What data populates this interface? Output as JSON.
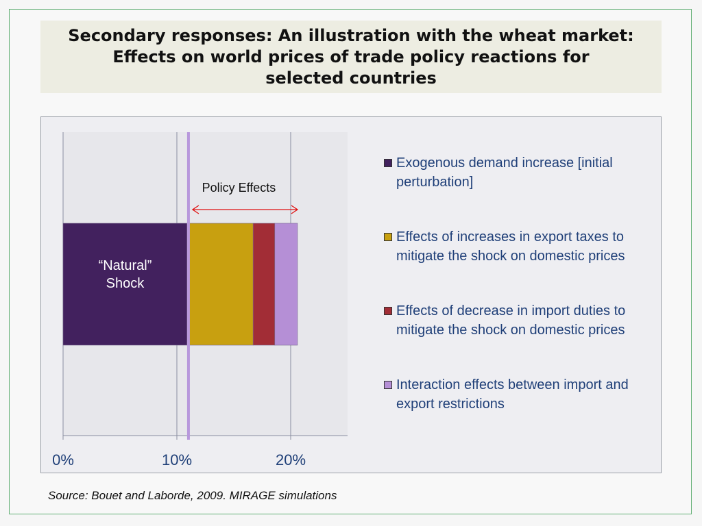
{
  "title": {
    "lines": [
      "Secondary responses: An illustration with the wheat market:",
      "Effects on world prices of trade policy reactions for",
      "selected countries"
    ]
  },
  "chart_data": {
    "type": "bar",
    "orientation": "horizontal",
    "stacked": true,
    "xlim": [
      0,
      0.25
    ],
    "x_ticks": [
      0,
      0.1,
      0.2
    ],
    "x_tick_labels": [
      "0%",
      "10%",
      "20%"
    ],
    "grid": true,
    "legend_position": "right",
    "series": [
      {
        "name": "Exogenous demand increase [initial perturbation]",
        "value": 0.109,
        "color": "#42215e"
      },
      {
        "name": "Effects of increases in export taxes to mitigate the shock on domestic prices",
        "value": 0.058,
        "color": "#c8a010"
      },
      {
        "name": "Effects of decrease in import duties to mitigate the shock on domestic prices",
        "value": 0.019,
        "color": "#a22d36"
      },
      {
        "name": "Interaction effects between import and export restrictions",
        "value": 0.02,
        "color": "#b58fd6"
      }
    ],
    "reference_line_x": 0.109,
    "reference_line_color": "#b898dc",
    "annotations": {
      "bar_label": "“Natural” Shock",
      "policy_effects_label": "Policy Effects",
      "arrow_color": "#e01010"
    }
  },
  "source": "Source: Bouet and Laborde, 2009. MIRAGE simulations"
}
